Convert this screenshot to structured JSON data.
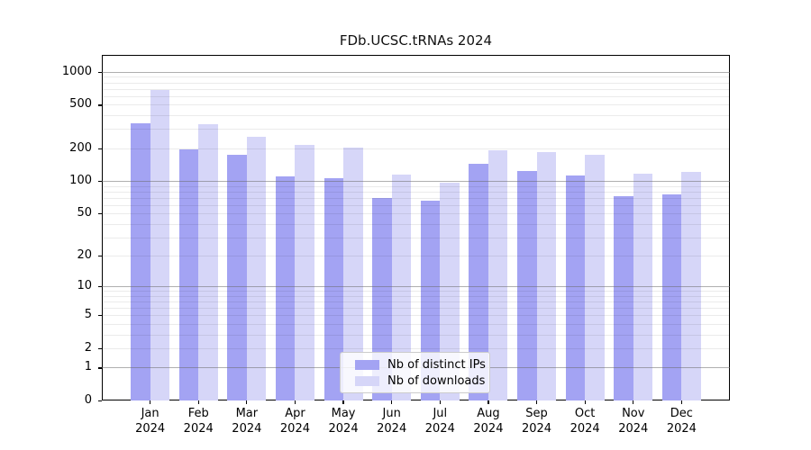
{
  "chart_data": {
    "type": "bar",
    "title": "FDb.UCSC.tRNAs 2024",
    "xlabel": "",
    "ylabel": "",
    "categories": [
      "Jan 2024",
      "Feb 2024",
      "Mar 2024",
      "Apr 2024",
      "May 2024",
      "Jun 2024",
      "Jul 2024",
      "Aug 2024",
      "Sep 2024",
      "Oct 2024",
      "Nov 2024",
      "Dec 2024"
    ],
    "x_ticks": [
      {
        "month": "Jan",
        "year": "2024"
      },
      {
        "month": "Feb",
        "year": "2024"
      },
      {
        "month": "Mar",
        "year": "2024"
      },
      {
        "month": "Apr",
        "year": "2024"
      },
      {
        "month": "May",
        "year": "2024"
      },
      {
        "month": "Jun",
        "year": "2024"
      },
      {
        "month": "Jul",
        "year": "2024"
      },
      {
        "month": "Aug",
        "year": "2024"
      },
      {
        "month": "Sep",
        "year": "2024"
      },
      {
        "month": "Oct",
        "year": "2024"
      },
      {
        "month": "Nov",
        "year": "2024"
      },
      {
        "month": "Dec",
        "year": "2024"
      }
    ],
    "series": [
      {
        "name": "Nb of distinct IPs",
        "color": "#a3a3f3",
        "values": [
          340,
          195,
          173,
          110,
          107,
          70,
          66,
          144,
          124,
          113,
          72,
          75
        ]
      },
      {
        "name": "Nb of downloads",
        "color": "#d6d6f8",
        "values": [
          685,
          330,
          257,
          213,
          204,
          115,
          97,
          191,
          185,
          174,
          116,
          122
        ]
      }
    ],
    "y_scale": "log1p",
    "y_ticks": [
      0,
      1,
      2,
      5,
      10,
      20,
      50,
      100,
      200,
      500,
      1000
    ],
    "ylim": [
      0,
      1430
    ],
    "grid": {
      "major_at_decades": [
        1,
        10,
        100,
        1000
      ],
      "minor_multiples": [
        2,
        3,
        4,
        5,
        6,
        7,
        8,
        9
      ]
    },
    "legend_position": "lower center",
    "colors": {
      "background": "#ffffff",
      "grid_major": "#b0b0b0",
      "grid_minor": "#ebebeb",
      "spine": "#000000"
    }
  }
}
